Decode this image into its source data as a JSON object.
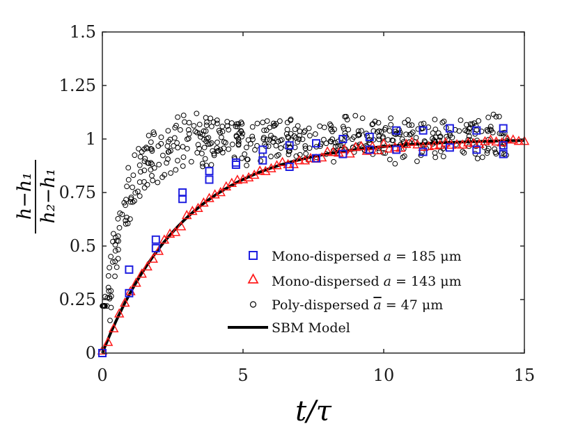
{
  "chart_data": {
    "type": "scatter",
    "title": "",
    "xlabel": "t/τ",
    "ylabel_numerator": "h−h₁",
    "ylabel_denominator": "h₂−h₁",
    "xlim": [
      0,
      15
    ],
    "ylim": [
      0,
      1.5
    ],
    "xticks": [
      0,
      5,
      10,
      15
    ],
    "xtick_labels": [
      "0",
      "5",
      "10",
      "15"
    ],
    "yticks": [
      0,
      0.25,
      0.5,
      0.75,
      1,
      1.25,
      1.5
    ],
    "ytick_labels": [
      "0",
      "0.25",
      "0.5",
      "0.75",
      "1",
      "1.25",
      "1.5"
    ],
    "grid": false,
    "legend_position": "bottom-right",
    "series": [
      {
        "name": "Mono-dispersed a = 185 μm",
        "marker": "square",
        "color": "#1f1fe0",
        "x": [
          0,
          0.95,
          0.95,
          1.9,
          1.9,
          2.85,
          2.85,
          3.8,
          3.8,
          4.75,
          4.75,
          5.7,
          5.7,
          6.65,
          6.65,
          7.6,
          7.6,
          8.55,
          8.55,
          9.5,
          9.5,
          10.45,
          10.45,
          11.4,
          11.4,
          12.35,
          12.35,
          13.3,
          13.3,
          14.25,
          14.25,
          14.25
        ],
        "y": [
          0,
          0.28,
          0.39,
          0.49,
          0.53,
          0.72,
          0.75,
          0.81,
          0.85,
          0.88,
          0.89,
          0.9,
          0.95,
          0.87,
          0.97,
          0.91,
          0.98,
          0.93,
          1.0,
          0.95,
          1.01,
          0.95,
          1.04,
          0.94,
          1.04,
          0.96,
          1.05,
          0.95,
          1.04,
          0.93,
          1.05,
          0.97
        ]
      },
      {
        "name": "Mono-dispersed a = 143 μm",
        "marker": "triangle",
        "color": "#ff1a1a",
        "model": "1 - exp(-x/3)",
        "x_start": 0,
        "x_step": 0.2,
        "count": 76
      },
      {
        "name": "Poly-dispersed ā = 47 μm",
        "marker": "circle",
        "color": "#000000",
        "model": "1 - exp(-x/0.7) with scatter ±0.12",
        "count": 520
      },
      {
        "name": "SBM Model",
        "marker": "line",
        "color": "#000000",
        "model": "1 - exp(-x/3)"
      }
    ],
    "legend": [
      {
        "label_prefix": "Mono-dispersed ",
        "label_var": "a",
        "label_suffix": " = 185 μm"
      },
      {
        "label_prefix": "Mono-dispersed ",
        "label_var": "a",
        "label_suffix": " = 143 μm"
      },
      {
        "label_prefix": "Poly-dispersed ",
        "label_var": "a",
        "label_suffix": " = 47 μm"
      },
      {
        "label_prefix": "SBM Model",
        "label_var": "",
        "label_suffix": ""
      }
    ]
  }
}
